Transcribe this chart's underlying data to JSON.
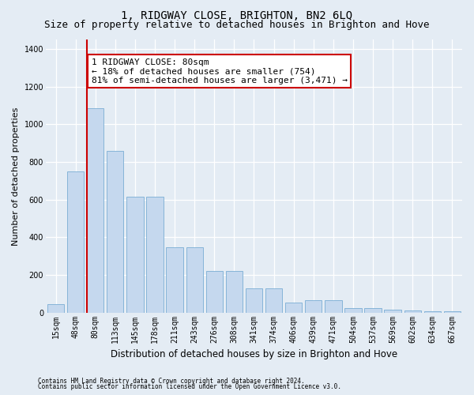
{
  "title": "1, RIDGWAY CLOSE, BRIGHTON, BN2 6LQ",
  "subtitle": "Size of property relative to detached houses in Brighton and Hove",
  "xlabel": "Distribution of detached houses by size in Brighton and Hove",
  "ylabel": "Number of detached properties",
  "footnote1": "Contains HM Land Registry data © Crown copyright and database right 2024.",
  "footnote2": "Contains public sector information licensed under the Open Government Licence v3.0.",
  "categories": [
    "15sqm",
    "48sqm",
    "80sqm",
    "113sqm",
    "145sqm",
    "178sqm",
    "211sqm",
    "243sqm",
    "276sqm",
    "308sqm",
    "341sqm",
    "374sqm",
    "406sqm",
    "439sqm",
    "471sqm",
    "504sqm",
    "537sqm",
    "569sqm",
    "602sqm",
    "634sqm",
    "667sqm"
  ],
  "values": [
    45,
    750,
    1085,
    860,
    615,
    615,
    345,
    345,
    220,
    220,
    130,
    130,
    55,
    65,
    65,
    25,
    25,
    15,
    10,
    5,
    5
  ],
  "bar_color": "#c5d8ee",
  "bar_edge_color": "#7aadd4",
  "property_bin_index": 2,
  "property_line_color": "#cc0000",
  "annotation_line1": "1 RIDGWAY CLOSE: 80sqm",
  "annotation_line2": "← 18% of detached houses are smaller (754)",
  "annotation_line3": "81% of semi-detached houses are larger (3,471) →",
  "annotation_box_facecolor": "#ffffff",
  "annotation_box_edgecolor": "#cc0000",
  "ylim": [
    0,
    1450
  ],
  "yticks": [
    0,
    200,
    400,
    600,
    800,
    1000,
    1200,
    1400
  ],
  "bg_color": "#e4ecf4",
  "grid_color": "#ffffff",
  "title_fontsize": 10,
  "subtitle_fontsize": 9,
  "tick_fontsize": 7,
  "ylabel_fontsize": 8,
  "xlabel_fontsize": 8.5,
  "annotation_fontsize": 8,
  "footnote_fontsize": 5.5
}
